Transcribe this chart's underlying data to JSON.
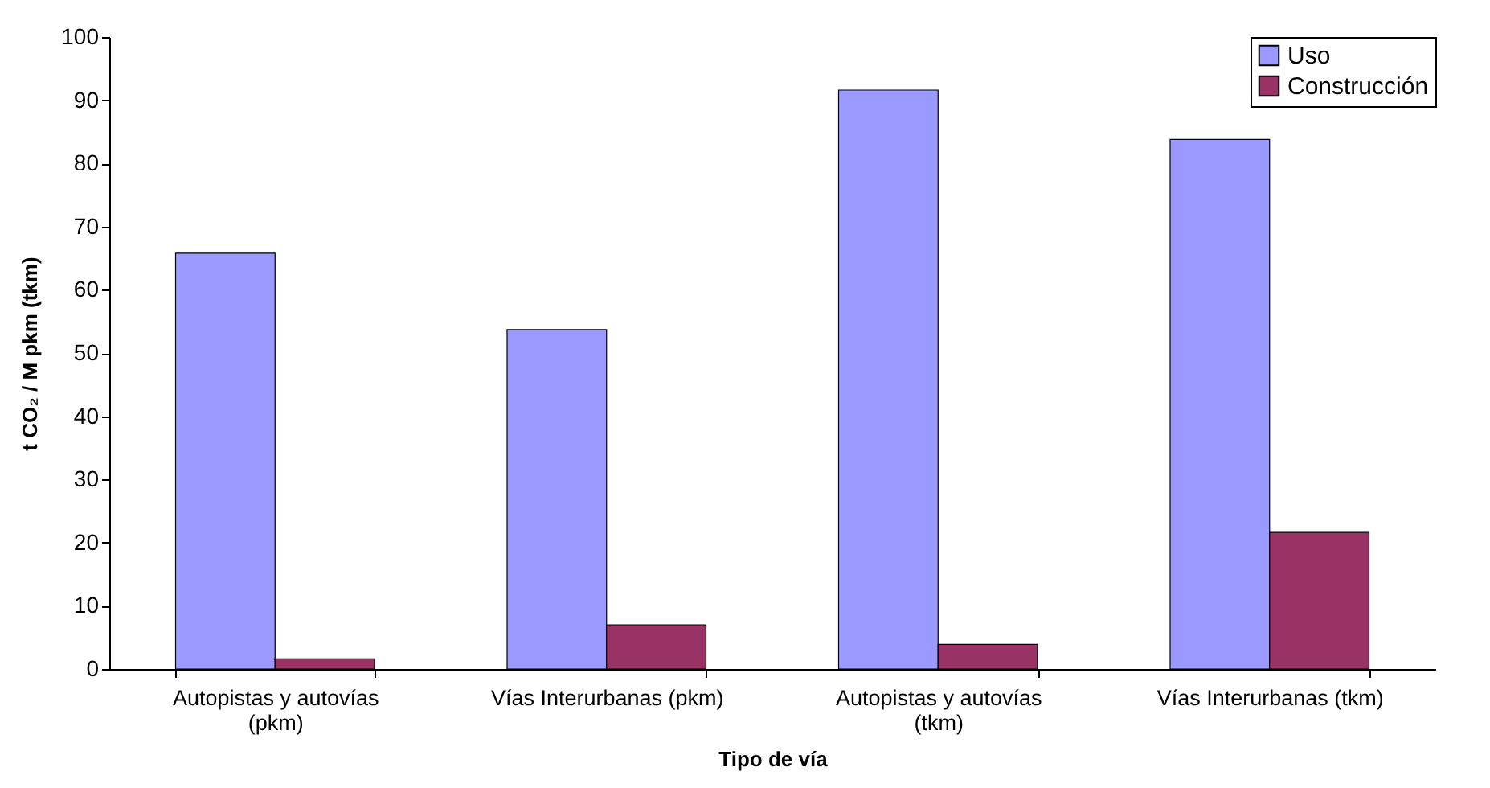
{
  "chart_data": {
    "type": "bar",
    "xlabel": "Tipo de vía",
    "ylabel": "t CO₂ / M pkm (tkm)",
    "categories": [
      "Autopistas y autovías (pkm)",
      "Vías Interurbanas (pkm)",
      "Autopistas y autovías (tkm)",
      "Vías Interurbanas (tkm)"
    ],
    "series": [
      {
        "name": "Uso",
        "color": "#9999ff",
        "values": [
          65.8,
          53.7,
          91.6,
          83.8
        ]
      },
      {
        "name": "Construcción",
        "color": "#993366",
        "values": [
          1.6,
          7.0,
          3.9,
          21.6
        ]
      }
    ],
    "ylim": [
      0,
      100
    ],
    "yticks": [
      0,
      10,
      20,
      30,
      40,
      50,
      60,
      70,
      80,
      90,
      100
    ],
    "grid": false,
    "legend": "top right"
  }
}
